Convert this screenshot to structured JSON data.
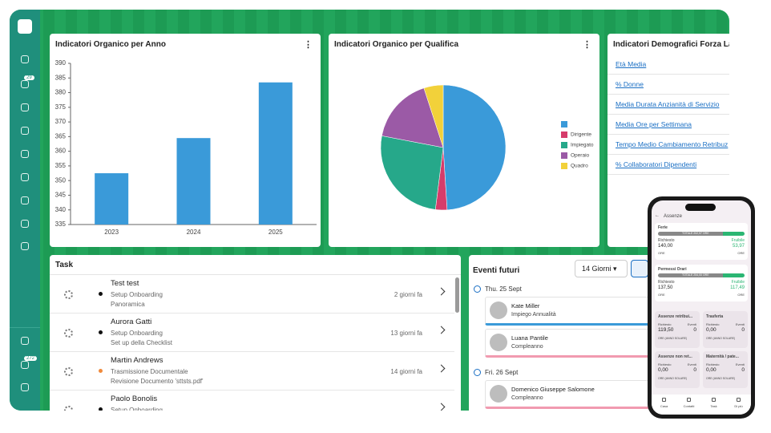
{
  "sidebar": {
    "badges": [
      "29",
      "272"
    ]
  },
  "chart_data": [
    {
      "type": "bar",
      "title": "Indicatori Organico per Anno",
      "categories": [
        "2023",
        "2024",
        "2025"
      ],
      "values": [
        352.5,
        364.5,
        383.5
      ],
      "color": "#3a9ad9",
      "ylim": [
        335,
        390
      ],
      "yticks": [
        335,
        340,
        345,
        350,
        355,
        360,
        365,
        370,
        375,
        380,
        385,
        390
      ],
      "grid": false
    },
    {
      "type": "pie",
      "title": "Indicatori Organico per Qualifica",
      "categories": [
        null,
        "Dirigente",
        "Impiegato",
        "Operaio",
        "Quadro"
      ],
      "values": [
        49,
        3,
        26,
        17,
        5
      ],
      "colors": [
        "#3a9ad9",
        "#d63c6b",
        "#26a88a",
        "#9b5aa6",
        "#f2d13a"
      ],
      "legend": "right"
    }
  ],
  "demographics": {
    "title": "Indicatori Demografici Forza Lav",
    "links": [
      "Età Media",
      "% Donne",
      "Media Durata Anzianità di Servizio",
      "Media Ore per Settimana",
      "Tempo Medio Cambiamento Retribuz",
      "% Collaboratori Dipendenti"
    ]
  },
  "tasks": {
    "title": "Task",
    "rows": [
      {
        "name": "Test test",
        "process": "Setup Onboarding",
        "step": "Panoramica",
        "time": "2 giorni fa"
      },
      {
        "name": "Aurora Gatti",
        "process": "Setup Onboarding",
        "step": "Set up della Checklist",
        "time": "13 giorni fa"
      },
      {
        "name": "Martin Andrews",
        "process": "Trasmissione Documentale",
        "step": "Revisione Documento 'sttsts.pdf'",
        "time": "14 giorni fa"
      },
      {
        "name": "Paolo Bonolis",
        "process": "Setup Onboarding",
        "step": "",
        "time": ""
      }
    ]
  },
  "events": {
    "title": "Eventi futuri",
    "range": "14 Giorni",
    "days": [
      {
        "date": "Thu. 25 Sept",
        "items": [
          {
            "name": "Kate Miller",
            "type": "Impiego Annualità"
          },
          {
            "name": "Luana Pantile",
            "type": "Compleanno"
          }
        ]
      },
      {
        "date": "Fri. 26 Sept",
        "items": [
          {
            "name": "Domenico Giuseppe Salomone",
            "type": "Compleanno"
          }
        ]
      }
    ]
  },
  "phone": {
    "title": "Assenze",
    "cards": [
      {
        "name": "Ferie",
        "total": "TOTALE 202,97 ORE",
        "req_label": "Richiesto",
        "req": "140,00",
        "req_unit": "ORE",
        "avail_label": "Fruibile",
        "avail": "53,97",
        "avail_unit": "ORE"
      },
      {
        "name": "Permessi Orari",
        "total": "TOTALE 254,00 ORE",
        "req_label": "Richiesto",
        "req": "137,50",
        "req_unit": "ORE",
        "avail_label": "Fruibile",
        "avail": "117,49",
        "avail_unit": "ORE"
      }
    ],
    "tiles": [
      {
        "name": "Assenze retribui...",
        "req_label": "Richiesto",
        "req": "119,50",
        "ev_label": "Eventi",
        "ev": "0",
        "note": "ORE (ANNO SOLARE)"
      },
      {
        "name": "Trasferta",
        "req_label": "Richiesto",
        "req": "0,00",
        "ev_label": "Eventi",
        "ev": "0",
        "note": "ORE (ANNO SOLARE)"
      },
      {
        "name": "Assenze non ret...",
        "req_label": "Richiesto",
        "req": "0,00",
        "ev_label": "Eventi",
        "ev": "0",
        "note": "ORE (ANNO SOLARE)"
      },
      {
        "name": "Maternità / pate...",
        "req_label": "Richiesto",
        "req": "0,00",
        "ev_label": "Eventi",
        "ev": "0",
        "note": "ORE (ANNO SOLARE)"
      }
    ],
    "nav": [
      "Casa",
      "Contatti",
      "Task",
      "Di più"
    ]
  }
}
